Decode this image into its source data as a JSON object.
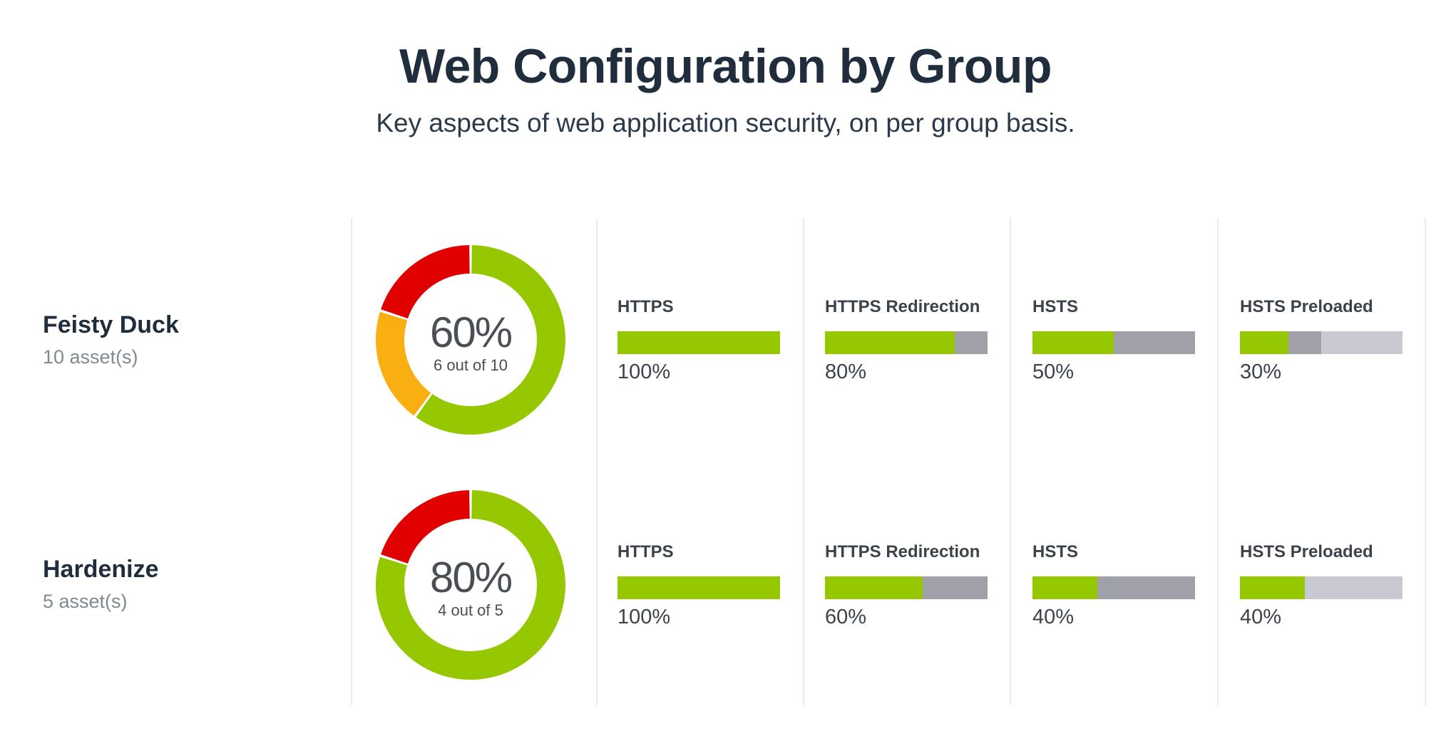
{
  "header": {
    "title": "Web Configuration by Group",
    "subtitle": "Key aspects of web application security, on per group basis."
  },
  "colors": {
    "good": "#95c800",
    "warning": "#f9ae12",
    "bad": "#e00000",
    "neutral_dark": "#a0a1a8",
    "neutral_light": "#c8c9d2"
  },
  "groups": [
    {
      "name": "Feisty Duck",
      "assets": "10 asset(s)",
      "donut": {
        "percent_label": "60%",
        "caption": "6 out of 10",
        "segments": [
          {
            "color": "#95c800",
            "value": 6
          },
          {
            "color": "#f9ae12",
            "value": 2
          },
          {
            "color": "#e00000",
            "value": 2
          }
        ]
      },
      "metrics": [
        {
          "label": "HTTPS",
          "value_label": "100%",
          "segments": [
            {
              "color": "#95c800",
              "value": 100
            }
          ]
        },
        {
          "label": "HTTPS Redirection",
          "value_label": "80%",
          "segments": [
            {
              "color": "#95c800",
              "value": 80
            },
            {
              "color": "#a0a1a8",
              "value": 20
            }
          ]
        },
        {
          "label": "HSTS",
          "value_label": "50%",
          "segments": [
            {
              "color": "#95c800",
              "value": 50
            },
            {
              "color": "#a0a1a8",
              "value": 50
            }
          ]
        },
        {
          "label": "HSTS Preloaded",
          "value_label": "30%",
          "segments": [
            {
              "color": "#95c800",
              "value": 30
            },
            {
              "color": "#a0a1a8",
              "value": 20
            },
            {
              "color": "#c8c9d2",
              "value": 50
            }
          ]
        }
      ]
    },
    {
      "name": "Hardenize",
      "assets": "5 asset(s)",
      "donut": {
        "percent_label": "80%",
        "caption": "4 out of 5",
        "segments": [
          {
            "color": "#95c800",
            "value": 4
          },
          {
            "color": "#e00000",
            "value": 1
          }
        ]
      },
      "metrics": [
        {
          "label": "HTTPS",
          "value_label": "100%",
          "segments": [
            {
              "color": "#95c800",
              "value": 100
            }
          ]
        },
        {
          "label": "HTTPS Redirection",
          "value_label": "60%",
          "segments": [
            {
              "color": "#95c800",
              "value": 60
            },
            {
              "color": "#a0a1a8",
              "value": 40
            }
          ]
        },
        {
          "label": "HSTS",
          "value_label": "40%",
          "segments": [
            {
              "color": "#95c800",
              "value": 40
            },
            {
              "color": "#a0a1a8",
              "value": 60
            }
          ]
        },
        {
          "label": "HSTS Preloaded",
          "value_label": "40%",
          "segments": [
            {
              "color": "#95c800",
              "value": 40
            },
            {
              "color": "#c8c9d2",
              "value": 60
            }
          ]
        }
      ]
    }
  ],
  "chart_data": [
    {
      "type": "pie",
      "title": "Feisty Duck",
      "center_label": "60%",
      "center_caption": "6 out of 10",
      "values": [
        6,
        2,
        2
      ],
      "colors": [
        "#95c800",
        "#f9ae12",
        "#e00000"
      ]
    },
    {
      "type": "bar",
      "orientation": "horizontal",
      "stacked": true,
      "title": "Feisty Duck",
      "categories": [
        "HTTPS",
        "HTTPS Redirection",
        "HSTS",
        "HSTS Preloaded"
      ],
      "series": [
        {
          "color": "#95c800",
          "values": [
            100,
            80,
            50,
            30
          ]
        },
        {
          "color": "#a0a1a8",
          "values": [
            0,
            20,
            50,
            20
          ]
        },
        {
          "color": "#c8c9d2",
          "values": [
            0,
            0,
            0,
            50
          ]
        }
      ],
      "data_labels": [
        "100%",
        "80%",
        "50%",
        "30%"
      ],
      "xlim": [
        0,
        100
      ]
    },
    {
      "type": "pie",
      "title": "Hardenize",
      "center_label": "80%",
      "center_caption": "4 out of 5",
      "values": [
        4,
        1
      ],
      "colors": [
        "#95c800",
        "#e00000"
      ]
    },
    {
      "type": "bar",
      "orientation": "horizontal",
      "stacked": true,
      "title": "Hardenize",
      "categories": [
        "HTTPS",
        "HTTPS Redirection",
        "HSTS",
        "HSTS Preloaded"
      ],
      "series": [
        {
          "color": "#95c800",
          "values": [
            100,
            60,
            40,
            40
          ]
        },
        {
          "color": "#a0a1a8",
          "values": [
            0,
            40,
            60,
            0
          ]
        },
        {
          "color": "#c8c9d2",
          "values": [
            0,
            0,
            0,
            60
          ]
        }
      ],
      "data_labels": [
        "100%",
        "60%",
        "40%",
        "40%"
      ],
      "xlim": [
        0,
        100
      ]
    }
  ]
}
